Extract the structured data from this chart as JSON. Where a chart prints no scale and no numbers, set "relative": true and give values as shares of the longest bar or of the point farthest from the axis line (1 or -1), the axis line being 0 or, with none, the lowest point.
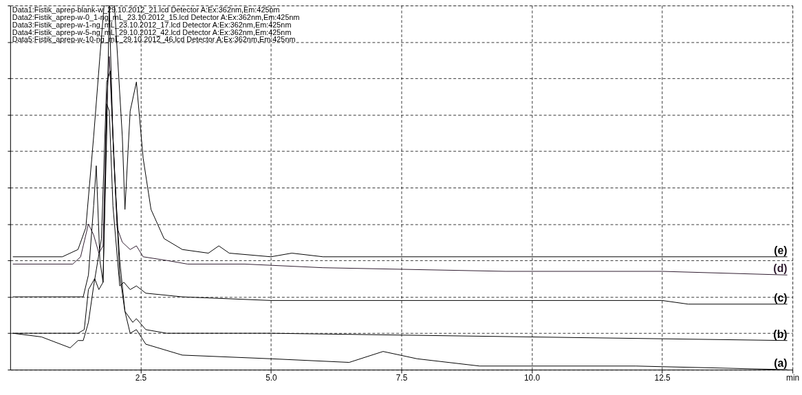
{
  "chart_data": {
    "type": "line",
    "relative": true,
    "xlim": [
      0,
      15
    ],
    "xticks": [
      2.5,
      {
        "value": 5,
        "label": "5.0"
      },
      7.5,
      {
        "value": 10,
        "label": "10.0"
      },
      12.5,
      {
        "value": 15,
        "label": "min"
      }
    ],
    "grid": true,
    "legend": false,
    "marker": "none",
    "line_style": "solid",
    "annotations": [
      "Data1:Fistik_aprep-blank-w_29.10.2012_21.lcd Detector A:Ex:362nm,Em:425nm",
      "Data2:Fistik_aprep-w-0_1-ng_mL_23.10.2012_15.lcd Detector A:Ex:362nm,Em:425nm",
      "Data3:Fistik_aprep-w-1-ng_mL_23.10.2012_17.lcd Detector A:Ex:362nm,Em:425nm",
      "Data4:Fistik_aprep-w-5-ng_mL_29.10.2012_42.lcd Detector A:Ex:362nm,Em:425nm",
      "Data5:Fistik_aprep-w-10-ng_mL_29.10.2012_46.lcd Detector A:Ex:362nm,Em:425nm"
    ],
    "series": [
      {
        "name": "(e)",
        "color": "#000000",
        "x": [
          0.05,
          1.0,
          1.3,
          1.45,
          1.6,
          1.72,
          1.8,
          2.0,
          2.15,
          2.2,
          2.3,
          2.42,
          2.55,
          2.7,
          2.95,
          3.3,
          3.8,
          4.0,
          4.2,
          5.0,
          5.4,
          6.0,
          14.9
        ],
        "values": [
          0.31,
          0.31,
          0.33,
          0.39,
          0.64,
          0.86,
          1.0,
          1.0,
          0.64,
          0.44,
          0.71,
          0.79,
          0.58,
          0.44,
          0.36,
          0.33,
          0.32,
          0.34,
          0.32,
          0.31,
          0.32,
          0.31,
          0.31
        ]
      },
      {
        "name": "(d)",
        "color": "#2e1a2e",
        "x": [
          0.05,
          1.2,
          1.35,
          1.5,
          1.6,
          1.7,
          1.78,
          1.85,
          1.9,
          1.97,
          2.05,
          2.15,
          2.3,
          2.42,
          2.55,
          3.0,
          3.4,
          4.5,
          6.0,
          9.5,
          12.5,
          14.9
        ],
        "values": [
          0.29,
          0.29,
          0.31,
          0.4,
          0.37,
          0.32,
          0.34,
          0.73,
          0.86,
          0.64,
          0.39,
          0.35,
          0.33,
          0.34,
          0.31,
          0.3,
          0.29,
          0.29,
          0.28,
          0.27,
          0.27,
          0.26
        ]
      },
      {
        "name": "(c)",
        "color": "#000000",
        "x": [
          0.05,
          1.4,
          1.5,
          1.6,
          1.65,
          1.72,
          1.78,
          1.85,
          1.9,
          1.97,
          2.1,
          2.18,
          2.3,
          2.42,
          2.6,
          3.3,
          5.0,
          12.5,
          13.0,
          14.9
        ],
        "values": [
          0.2,
          0.2,
          0.26,
          0.45,
          0.56,
          0.3,
          0.24,
          0.73,
          0.71,
          0.45,
          0.23,
          0.24,
          0.22,
          0.23,
          0.21,
          0.2,
          0.19,
          0.19,
          0.18,
          0.18
        ]
      },
      {
        "name": "(b)",
        "color": "#000000",
        "x": [
          0.05,
          1.2,
          1.3,
          1.42,
          1.5,
          1.62,
          1.7,
          1.78,
          1.85,
          1.9,
          1.97,
          2.1,
          2.2,
          2.35,
          2.42,
          2.6,
          3.0,
          5.0,
          14.9
        ],
        "values": [
          0.1,
          0.1,
          0.1,
          0.11,
          0.22,
          0.25,
          0.22,
          0.24,
          0.64,
          1.0,
          0.64,
          0.26,
          0.16,
          0.13,
          0.14,
          0.11,
          0.1,
          0.1,
          0.08
        ]
      },
      {
        "name": "(a)",
        "color": "#000000",
        "x": [
          0.05,
          0.6,
          1.15,
          1.3,
          1.4,
          1.5,
          1.6,
          1.75,
          1.85,
          1.92,
          2.0,
          2.1,
          2.2,
          2.3,
          2.42,
          2.6,
          3.3,
          5.0,
          6.5,
          7.15,
          7.8,
          9.0,
          12.0,
          14.9
        ],
        "values": [
          0.1,
          0.09,
          0.06,
          0.08,
          0.08,
          0.13,
          0.23,
          0.36,
          0.79,
          0.82,
          0.54,
          0.3,
          0.16,
          0.1,
          0.11,
          0.07,
          0.04,
          0.03,
          0.02,
          0.05,
          0.03,
          0.01,
          0.01,
          0.0
        ]
      }
    ]
  }
}
